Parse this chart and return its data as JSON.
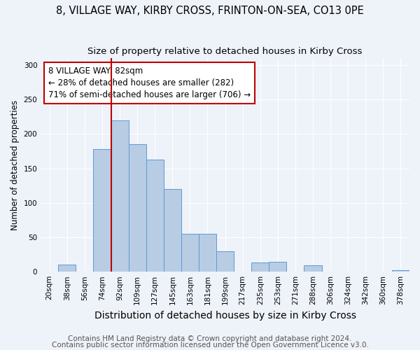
{
  "title": "8, VILLAGE WAY, KIRBY CROSS, FRINTON-ON-SEA, CO13 0PE",
  "subtitle": "Size of property relative to detached houses in Kirby Cross",
  "xlabel": "Distribution of detached houses by size in Kirby Cross",
  "ylabel": "Number of detached properties",
  "categories": [
    "20sqm",
    "38sqm",
    "56sqm",
    "74sqm",
    "92sqm",
    "109sqm",
    "127sqm",
    "145sqm",
    "163sqm",
    "181sqm",
    "199sqm",
    "217sqm",
    "235sqm",
    "253sqm",
    "271sqm",
    "288sqm",
    "306sqm",
    "324sqm",
    "342sqm",
    "360sqm",
    "378sqm"
  ],
  "values": [
    0,
    10,
    0,
    178,
    220,
    185,
    163,
    120,
    55,
    55,
    30,
    0,
    13,
    14,
    0,
    9,
    0,
    0,
    0,
    0,
    2
  ],
  "bar_color": "#b8cce4",
  "bar_edge_color": "#5b9bd5",
  "vline_x": 3.5,
  "vline_color": "#c00000",
  "annotation_text": "8 VILLAGE WAY: 82sqm\n← 28% of detached houses are smaller (282)\n71% of semi-detached houses are larger (706) →",
  "annotation_box_color": "#ffffff",
  "annotation_box_edge": "#c00000",
  "ylim": [
    0,
    310
  ],
  "yticks": [
    0,
    50,
    100,
    150,
    200,
    250,
    300
  ],
  "background_color": "#eef2f9",
  "grid_color": "#ffffff",
  "footer_line1": "Contains HM Land Registry data © Crown copyright and database right 2024.",
  "footer_line2": "Contains public sector information licensed under the Open Government Licence v3.0.",
  "title_fontsize": 10.5,
  "subtitle_fontsize": 9.5,
  "xlabel_fontsize": 10,
  "ylabel_fontsize": 8.5,
  "tick_fontsize": 7.5,
  "annotation_fontsize": 8.5,
  "footer_fontsize": 7.5
}
